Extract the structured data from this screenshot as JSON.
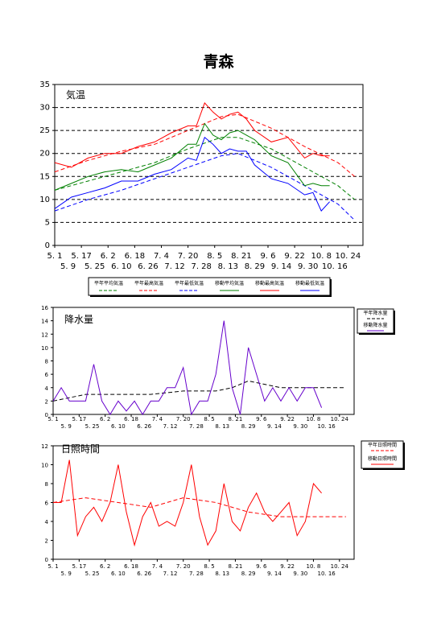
{
  "title": "青森",
  "chart_data": [
    {
      "type": "line",
      "label": "気温",
      "ylim": [
        0,
        35
      ],
      "yticks": [
        0,
        5,
        10,
        15,
        20,
        25,
        30,
        35
      ],
      "xticks_top": [
        "5. 1",
        "5. 17",
        "6. 2",
        "6. 18",
        "7. 4",
        "7. 20",
        "8. 5",
        "8. 21",
        "9. 6",
        "9. 22",
        "10. 8",
        "10. 24"
      ],
      "xticks_bottom": [
        "5. 9",
        "5. 25",
        "6. 10",
        "6. 26",
        "7. 12",
        "7. 28",
        "8. 13",
        "8. 29",
        "9. 14",
        "9. 30",
        "10. 16"
      ],
      "grid": "horizontal dashed",
      "legend": [
        "平年平均気温",
        "平年最高気温",
        "平年最低気温",
        "移動平均気温",
        "移動最高気温",
        "移動最低気温"
      ],
      "series": [
        {
          "name": "平年平均気温",
          "color": "#008000",
          "style": "dashed",
          "x": [
            0,
            20,
            40,
            60,
            80,
            100,
            110,
            130,
            150,
            170,
            180
          ],
          "y": [
            12,
            14,
            16,
            18,
            21,
            23.5,
            23.5,
            21,
            17,
            13,
            10
          ]
        },
        {
          "name": "平年最高気温",
          "color": "#ff0000",
          "style": "dashed",
          "x": [
            0,
            20,
            40,
            60,
            80,
            100,
            110,
            130,
            150,
            170,
            180
          ],
          "y": [
            16,
            18.5,
            20.5,
            22,
            25,
            28,
            28.5,
            25.5,
            21.5,
            18,
            15
          ]
        },
        {
          "name": "平年最低気温",
          "color": "#0000ff",
          "style": "dashed",
          "x": [
            0,
            20,
            40,
            60,
            80,
            100,
            110,
            130,
            150,
            170,
            180
          ],
          "y": [
            7.5,
            10,
            12,
            14.5,
            17,
            19.5,
            20,
            17,
            13,
            9,
            5.5
          ]
        },
        {
          "name": "移動平均気温",
          "color": "#008000",
          "style": "solid",
          "x": [
            0,
            10,
            20,
            30,
            40,
            50,
            60,
            70,
            80,
            85,
            90,
            95,
            100,
            105,
            110,
            115,
            120,
            130,
            140,
            150,
            155,
            160,
            165
          ],
          "y": [
            12,
            13.5,
            15,
            16,
            16.5,
            16,
            17.5,
            19,
            22,
            22,
            26.5,
            24,
            23,
            24.5,
            25,
            24,
            23,
            19.5,
            18,
            13,
            13.5,
            13,
            13
          ]
        },
        {
          "name": "移動最高気温",
          "color": "#ff0000",
          "style": "solid",
          "x": [
            0,
            10,
            20,
            30,
            40,
            50,
            60,
            70,
            80,
            85,
            90,
            95,
            100,
            105,
            110,
            115,
            120,
            130,
            140,
            150,
            155,
            160,
            165
          ],
          "y": [
            18,
            17,
            19,
            20,
            20,
            21.5,
            22.5,
            24.5,
            26,
            26,
            31,
            29,
            27.5,
            28.5,
            29,
            27.5,
            25,
            22.5,
            23.5,
            19,
            20,
            19.5,
            19.5
          ]
        },
        {
          "name": "移動最低気温",
          "color": "#0000ff",
          "style": "solid",
          "x": [
            0,
            10,
            20,
            30,
            40,
            50,
            60,
            70,
            80,
            85,
            90,
            95,
            100,
            105,
            110,
            115,
            120,
            130,
            140,
            150,
            155,
            160,
            165
          ],
          "y": [
            8,
            10.5,
            11.5,
            12.5,
            14,
            14,
            15.5,
            16.5,
            19,
            18.5,
            23.5,
            22,
            20,
            21,
            20.5,
            20.5,
            17.5,
            14.5,
            13.5,
            11,
            11.5,
            7.5,
            9.5
          ]
        }
      ]
    },
    {
      "type": "line",
      "label": "降水量",
      "ylim": [
        0,
        16
      ],
      "yticks": [
        0,
        2,
        4,
        6,
        8,
        10,
        12,
        14,
        16
      ],
      "xticks_top": [
        "5. 1",
        "5. 17",
        "6. 2",
        "6. 18",
        "7. 4",
        "7. 20",
        "8. 5",
        "8. 21",
        "9. 6",
        "9. 22",
        "10. 8",
        "10. 24"
      ],
      "xticks_bottom": [
        "5. 9",
        "5. 25",
        "6. 10",
        "6. 26",
        "7. 12",
        "7. 28",
        "8. 13",
        "8. 29",
        "9. 14",
        "9. 30",
        "10. 16"
      ],
      "legend": [
        "平年降水量",
        "移動降水量"
      ],
      "series": [
        {
          "name": "平年降水量",
          "color": "#000000",
          "style": "dashed",
          "x": [
            0,
            20,
            40,
            60,
            80,
            100,
            110,
            120,
            140,
            160,
            180
          ],
          "y": [
            2,
            3,
            3,
            3,
            3.5,
            3.5,
            4,
            5,
            4,
            4,
            4
          ]
        },
        {
          "name": "移動降水量",
          "color": "#6600cc",
          "style": "solid",
          "x": [
            0,
            5,
            10,
            15,
            20,
            25,
            30,
            35,
            40,
            45,
            50,
            55,
            60,
            65,
            70,
            75,
            80,
            85,
            90,
            95,
            100,
            105,
            110,
            115,
            120,
            125,
            130,
            135,
            140,
            145,
            150,
            155,
            160,
            165
          ],
          "y": [
            2,
            4,
            2,
            2,
            2,
            7.5,
            2,
            0,
            2,
            0.5,
            2,
            0,
            2,
            2,
            4,
            4,
            7,
            0,
            2,
            2,
            6,
            14,
            4,
            0,
            10,
            6,
            2,
            4,
            2,
            4,
            2,
            4,
            4,
            1
          ]
        }
      ]
    },
    {
      "type": "line",
      "label": "日照時間",
      "ylim": [
        0,
        12
      ],
      "yticks": [
        0,
        2,
        4,
        6,
        8,
        10,
        12
      ],
      "xticks_top": [
        "5. 1",
        "5. 17",
        "6. 2",
        "6. 18",
        "7. 4",
        "7. 20",
        "8. 5",
        "8. 21",
        "9. 6",
        "9. 22",
        "10. 8",
        "10. 24"
      ],
      "xticks_bottom": [
        "5. 9",
        "5. 25",
        "6. 10",
        "6. 26",
        "7. 12",
        "7. 28",
        "8. 13",
        "8. 29",
        "9. 14",
        "9. 30",
        "10. 16"
      ],
      "legend": [
        "平年日照時間",
        "移動日照時間"
      ],
      "series": [
        {
          "name": "平年日照時間",
          "color": "#ff0000",
          "style": "dashed",
          "x": [
            0,
            20,
            40,
            60,
            80,
            100,
            110,
            120,
            140,
            160,
            180
          ],
          "y": [
            6,
            6.5,
            6,
            5.5,
            6.5,
            6,
            5.5,
            5,
            4.5,
            4.5,
            4.5
          ]
        },
        {
          "name": "移動日照時間",
          "color": "#ff0000",
          "style": "solid",
          "x": [
            0,
            5,
            10,
            15,
            20,
            25,
            30,
            35,
            40,
            45,
            50,
            55,
            60,
            65,
            70,
            75,
            80,
            85,
            90,
            95,
            100,
            105,
            110,
            115,
            120,
            125,
            130,
            135,
            140,
            145,
            150,
            155,
            160,
            165
          ],
          "y": [
            6,
            6,
            10.5,
            2.5,
            4.5,
            5.5,
            4,
            6,
            10,
            5,
            1.5,
            4.5,
            6,
            3.5,
            4,
            3.5,
            6,
            10,
            4.5,
            1.5,
            3,
            8,
            4,
            3,
            5.5,
            7,
            5,
            4,
            5,
            6,
            2.5,
            4,
            8,
            7
          ]
        }
      ]
    }
  ]
}
